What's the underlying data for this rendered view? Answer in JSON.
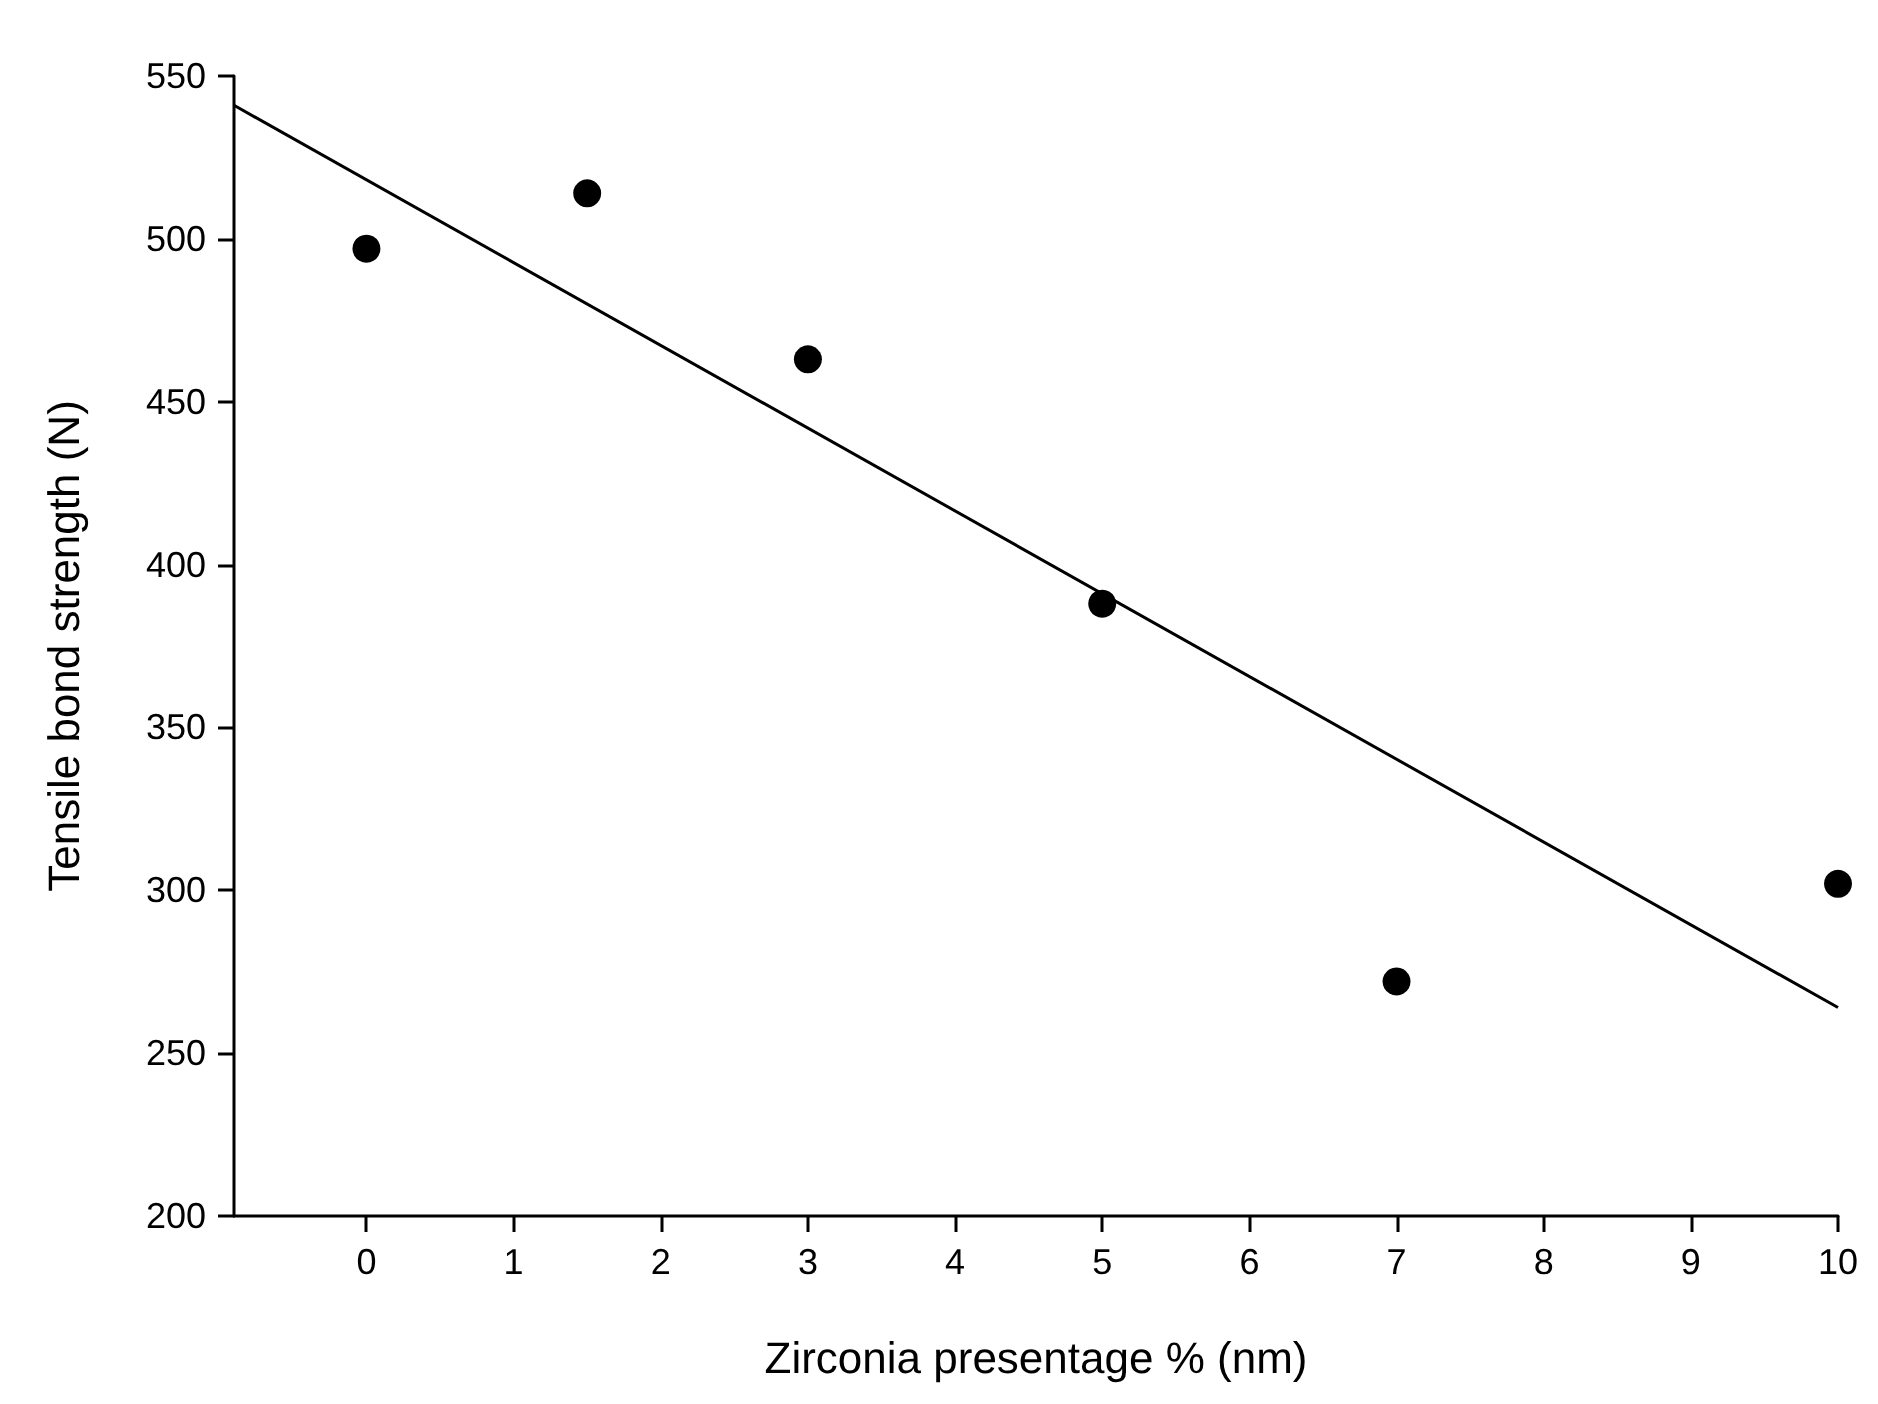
{
  "chart_data": {
    "type": "scatter",
    "xlabel": "Zirconia presentage % (nm)",
    "ylabel": "Tensile bond strength (N)",
    "series": [
      {
        "color": "#000000",
        "marker": "circle",
        "x": [
          0,
          1.5,
          3,
          5,
          7,
          10
        ],
        "values": [
          497,
          514,
          463,
          388,
          272,
          302
        ]
      },
      {
        "type": "line",
        "color": "#000000",
        "marker": "none",
        "line_style": "solid",
        "x": [
          -0.9,
          10
        ],
        "values": [
          541,
          264
        ]
      }
    ],
    "xlim": [
      -0.9,
      10
    ],
    "xticks": [
      0,
      1,
      2,
      3,
      4,
      5,
      6,
      7,
      8,
      9,
      10
    ],
    "ylim": [
      200,
      550
    ],
    "yticks": [
      200,
      250,
      300,
      350,
      400,
      450,
      500,
      550
    ],
    "grid": false
  }
}
